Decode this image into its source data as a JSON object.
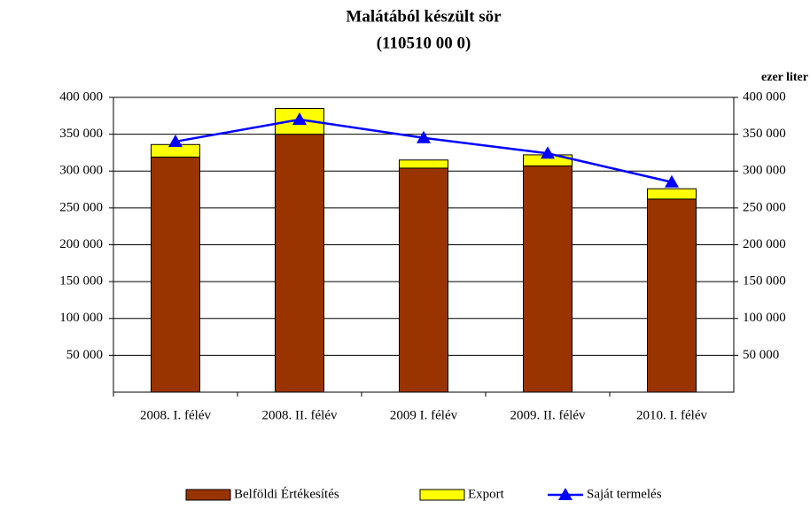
{
  "chart_data": {
    "type": "bar_line",
    "title": "Malátából készült sör",
    "subtitle": "(110510 00 0)",
    "y2_label": "ezer liter",
    "categories": [
      "2008. I. félév",
      "2008. II. félév",
      "2009 I. félév",
      "2009. II. félév",
      "2010. I. félév"
    ],
    "series": [
      {
        "name": "Belföldi Értékesítés",
        "color": "#993300",
        "type": "bar",
        "values": [
          319000,
          350000,
          304000,
          307000,
          262000
        ]
      },
      {
        "name": "Export",
        "color": "#ffff00",
        "type": "bar",
        "values": [
          17000,
          35000,
          11000,
          15000,
          14000
        ]
      },
      {
        "name": "Saját termelés",
        "color": "#0000ff",
        "type": "line",
        "axis": "y2",
        "values": [
          340000,
          370000,
          345000,
          324000,
          285000
        ]
      }
    ],
    "ylim": [
      0,
      400000
    ],
    "yticks": [
      {
        "value": 50000,
        "label": "50 000"
      },
      {
        "value": 100000,
        "label": "100 000"
      },
      {
        "value": 150000,
        "label": "150 000"
      },
      {
        "value": 200000,
        "label": "200 000"
      },
      {
        "value": 250000,
        "label": "250 000"
      },
      {
        "value": 300000,
        "label": "300 000"
      },
      {
        "value": 350000,
        "label": "350 000"
      },
      {
        "value": 400000,
        "label": "400 000"
      }
    ],
    "y2lim": [
      0,
      400000
    ],
    "y2ticks": [
      {
        "value": 50000,
        "label": "50 000"
      },
      {
        "value": 100000,
        "label": "100 000"
      },
      {
        "value": 150000,
        "label": "150 000"
      },
      {
        "value": 200000,
        "label": "200 000"
      },
      {
        "value": 250000,
        "label": "250 000"
      },
      {
        "value": 300000,
        "label": "300 000"
      },
      {
        "value": 350000,
        "label": "350 000"
      },
      {
        "value": 400000,
        "label": "400 000"
      }
    ],
    "grid": true,
    "legend": "bottom"
  }
}
